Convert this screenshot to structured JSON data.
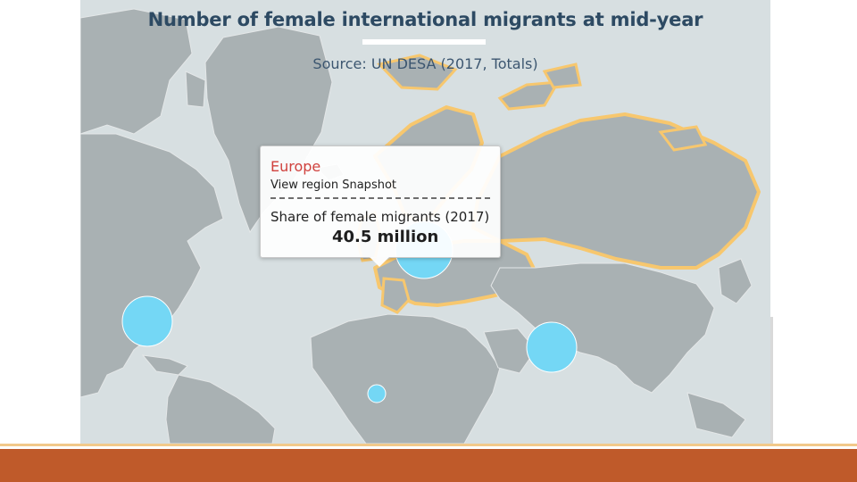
{
  "map": {
    "title": "Number of female international migrants at mid-year",
    "source": "Source: UN DESA (2017, Totals)",
    "colors": {
      "ocean": "#d7dfe1",
      "land": "#a9b1b3",
      "border": "#e4e7e8",
      "highlight": "#f7c76e",
      "bubble": "#74d7f5",
      "accent_bar": "#bf5a2a"
    },
    "tooltip": {
      "region": "Europe",
      "link": "View region Snapshot",
      "metric": "Share of female migrants (2017)",
      "value": "40.5 million"
    },
    "highlighted_region": "Europe",
    "bubbles": [
      {
        "region": "Northern America",
        "size": "large"
      },
      {
        "region": "Europe",
        "size": "large"
      },
      {
        "region": "Asia",
        "size": "large"
      },
      {
        "region": "Africa",
        "size": "small"
      }
    ]
  }
}
